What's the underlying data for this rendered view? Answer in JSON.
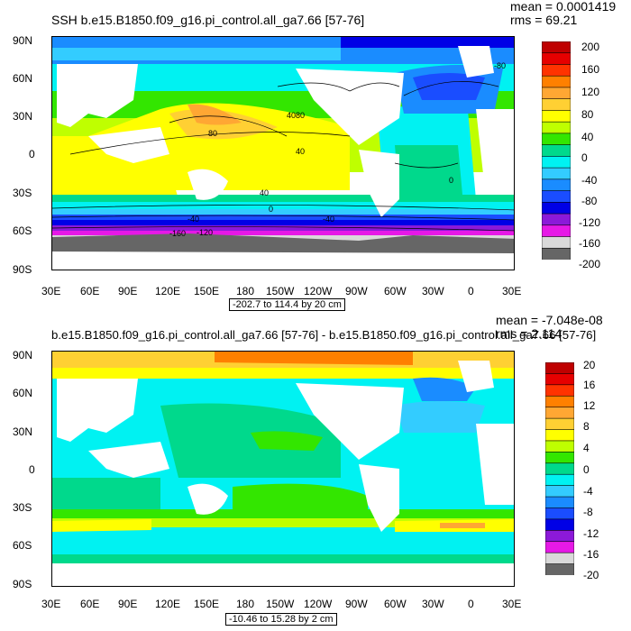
{
  "colors": [
    "#bf0000",
    "#e60000",
    "#ff3300",
    "#ff8000",
    "#ffa733",
    "#ffd033",
    "#ffff00",
    "#bfff00",
    "#33e600",
    "#00d98c",
    "#00f2f2",
    "#33ccff",
    "#1a8cff",
    "#1a4dff",
    "#0000e6",
    "#8c19d9",
    "#e619e6",
    "#d9d9d9",
    "#666666"
  ],
  "land_color": "#ffffff",
  "lat_labels": [
    "90N",
    "60N",
    "30N",
    "0",
    "30S",
    "60S",
    "90S"
  ],
  "lon_labels": [
    "30E",
    "60E",
    "90E",
    "120E",
    "150E",
    "180",
    "150W",
    "120W",
    "90W",
    "60W",
    "30W",
    "0",
    "30E"
  ],
  "panel1": {
    "title": "SSH b.e15.B1850.f09_g16.pi_control.all_ga7.66 [57-76]",
    "mean": "mean = 0.0001419",
    "rms": "rms = 69.21",
    "range": "-202.7 to 114.4 by 20 cm",
    "colorbar_labels": [
      "200",
      "160",
      "120",
      "80",
      "40",
      "0",
      "-40",
      "-80",
      "-120",
      "-160",
      "-200"
    ],
    "contour_labels": [
      "80",
      "40",
      "0",
      "-40",
      "-80",
      "-120",
      "-160",
      "40",
      "40",
      "0",
      "80",
      "-40"
    ]
  },
  "panel2": {
    "title": "b.e15.B1850.f09_g16.pi_control.all_ga7.66 [57-76] - b.e15.B1850.f09_g16.pi_control.all_ga7.66 [57-76]",
    "mean": "mean = -7.048e-08",
    "rms": "rms = 2.114",
    "range": "-10.46 to 15.28 by 2 cm",
    "colorbar_labels": [
      "20",
      "16",
      "12",
      "8",
      "4",
      "0",
      "-4",
      "-8",
      "-12",
      "-16",
      "-20"
    ]
  }
}
